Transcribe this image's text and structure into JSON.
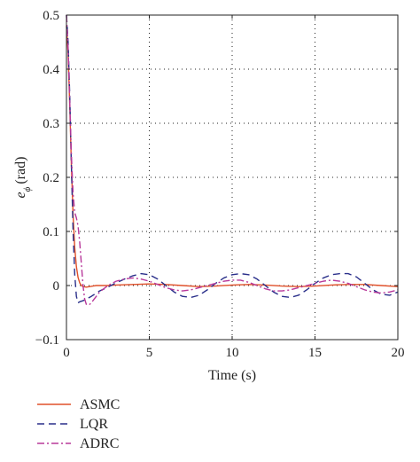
{
  "chart_data": {
    "type": "line",
    "xlabel": "Time (s)",
    "ylabel": "(rad)",
    "ylabel_symbol": "e",
    "ylabel_subscript": "ϕ",
    "xlim": [
      0,
      20
    ],
    "ylim": [
      -0.1,
      0.5
    ],
    "xticks": [
      0,
      5,
      10,
      15,
      20
    ],
    "yticks": [
      -0.1,
      0,
      0.1,
      0.2,
      0.3,
      0.4,
      0.5
    ],
    "xtick_labels": [
      "0",
      "5",
      "10",
      "15",
      "20"
    ],
    "ytick_labels": [
      "−0.1",
      "0",
      "0.1",
      "0.2",
      "0.3",
      "0.4",
      "0.5"
    ],
    "grid": true,
    "legend_position": "below-left",
    "series": [
      {
        "name": "ASMC",
        "color": "#e0502a",
        "dash": "solid",
        "x": [
          0,
          0.1,
          0.2,
          0.3,
          0.4,
          0.5,
          0.6,
          0.7,
          0.8,
          0.9,
          1.0,
          1.2,
          1.4,
          1.6,
          1.8,
          2.0,
          2.5,
          3,
          4,
          5,
          6,
          7,
          8,
          9,
          10,
          11,
          12,
          13,
          14,
          15,
          16,
          17,
          18,
          19,
          20
        ],
        "y": [
          0.48,
          0.43,
          0.33,
          0.22,
          0.13,
          0.07,
          0.035,
          0.015,
          0.005,
          0.0,
          -0.002,
          -0.003,
          -0.002,
          -0.001,
          0.0,
          0.0,
          0.0,
          0.001,
          0.002,
          0.003,
          0.002,
          0.0,
          -0.002,
          -0.001,
          0.001,
          0.002,
          0.001,
          -0.001,
          -0.002,
          -0.001,
          0.001,
          0.002,
          0.002,
          0.0,
          -0.002
        ]
      },
      {
        "name": "LQR",
        "color": "#2a2f8a",
        "dash": "8 5",
        "x": [
          0,
          0.1,
          0.2,
          0.3,
          0.4,
          0.5,
          0.6,
          0.7,
          0.8,
          1.0,
          1.2,
          1.5,
          2.0,
          2.5,
          3.0,
          3.5,
          4.0,
          4.5,
          5.0,
          5.5,
          6.0,
          6.5,
          7.0,
          7.5,
          8.0,
          8.5,
          9.0,
          9.5,
          10.0,
          10.5,
          11.0,
          11.5,
          12.0,
          12.5,
          13.0,
          13.5,
          14.0,
          14.5,
          15.0,
          15.5,
          16.0,
          16.5,
          17.0,
          17.5,
          18.0,
          18.5,
          19.0,
          19.5,
          20.0
        ],
        "y": [
          0.5,
          0.45,
          0.35,
          0.22,
          0.1,
          0.02,
          -0.02,
          -0.032,
          -0.03,
          -0.028,
          -0.025,
          -0.02,
          -0.01,
          -0.003,
          0.005,
          0.012,
          0.018,
          0.022,
          0.02,
          0.012,
          0.0,
          -0.012,
          -0.02,
          -0.022,
          -0.018,
          -0.008,
          0.004,
          0.014,
          0.02,
          0.022,
          0.02,
          0.012,
          0.0,
          -0.012,
          -0.02,
          -0.022,
          -0.018,
          -0.008,
          0.004,
          0.014,
          0.02,
          0.022,
          0.022,
          0.016,
          0.004,
          -0.008,
          -0.016,
          -0.018,
          -0.012
        ]
      },
      {
        "name": "ADRC",
        "color": "#b8389a",
        "dash": "8 3 2 3",
        "x": [
          0,
          0.1,
          0.2,
          0.3,
          0.4,
          0.5,
          0.6,
          0.7,
          0.8,
          0.9,
          1.0,
          1.1,
          1.2,
          1.4,
          1.6,
          1.8,
          2.0,
          2.5,
          3.0,
          3.5,
          4.0,
          4.5,
          5.0,
          5.5,
          6.0,
          6.5,
          7.0,
          7.5,
          8.0,
          8.5,
          9.0,
          9.5,
          10.0,
          10.5,
          11.0,
          11.5,
          12.0,
          12.5,
          13.0,
          13.5,
          14.0,
          14.5,
          15.0,
          15.5,
          16.0,
          16.5,
          17.0,
          17.5,
          18.0,
          18.5,
          19.0,
          19.5,
          20.0
        ],
        "y": [
          0.5,
          0.44,
          0.34,
          0.24,
          0.17,
          0.135,
          0.125,
          0.11,
          0.08,
          0.04,
          0.0,
          -0.025,
          -0.035,
          -0.035,
          -0.028,
          -0.02,
          -0.012,
          0.0,
          0.008,
          0.012,
          0.014,
          0.012,
          0.008,
          0.002,
          -0.004,
          -0.008,
          -0.01,
          -0.008,
          -0.004,
          0.0,
          0.004,
          0.008,
          0.01,
          0.01,
          0.006,
          0.0,
          -0.006,
          -0.01,
          -0.01,
          -0.008,
          -0.004,
          0.0,
          0.004,
          0.008,
          0.01,
          0.008,
          0.004,
          -0.002,
          -0.008,
          -0.012,
          -0.014,
          -0.012,
          -0.008
        ]
      }
    ]
  }
}
